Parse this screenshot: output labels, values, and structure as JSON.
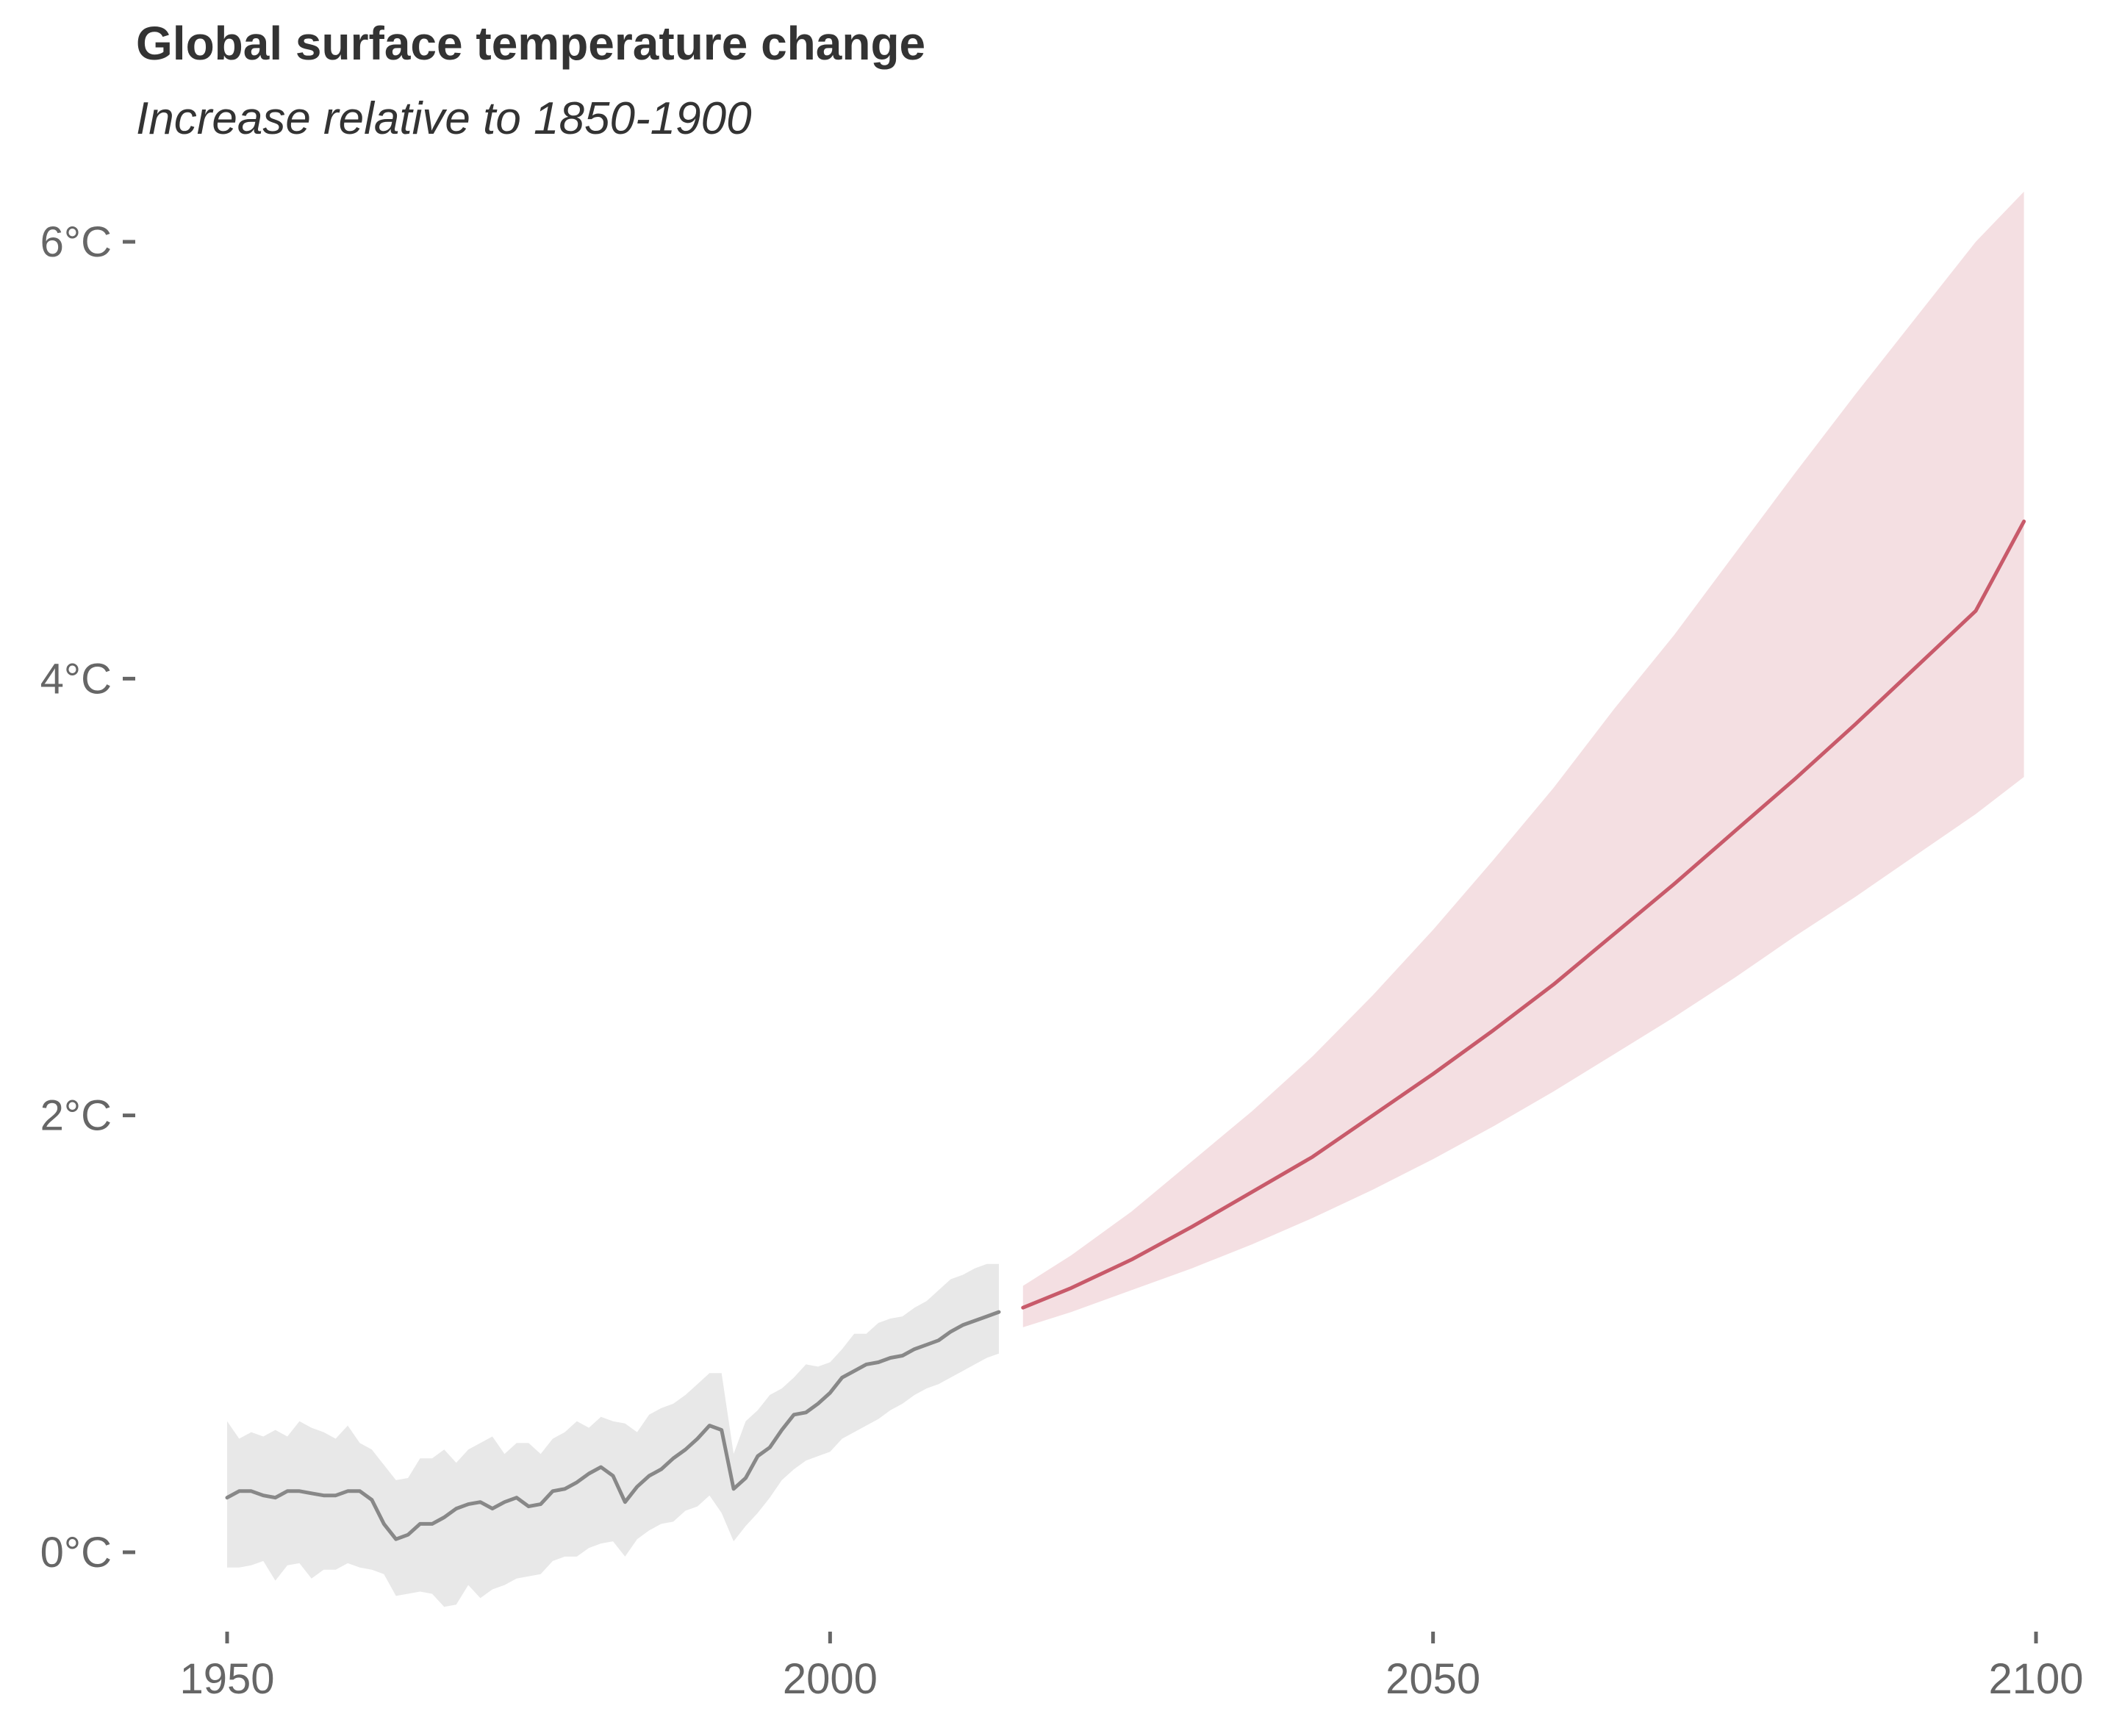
{
  "chart_data": {
    "type": "line",
    "title": "Global surface temperature change",
    "subtitle": "Increase relative to 1850-1900",
    "xlabel": "",
    "ylabel": "",
    "xlim": [
      1945,
      2103
    ],
    "ylim": [
      -0.6,
      6.6
    ],
    "x_ticks": [
      1950,
      2000,
      2050,
      2100
    ],
    "x_tick_labels": [
      "1950",
      "2000",
      "2050",
      "2100"
    ],
    "y_ticks": [
      0,
      2,
      4,
      6
    ],
    "y_tick_labels": [
      "0°C",
      "2°C",
      "4°C",
      "6°C"
    ],
    "grid": false,
    "legend": "none",
    "colors": {
      "historical_line": "#888888",
      "historical_band": "#e8e8e8",
      "projection_line": "#c85a6a",
      "projection_band": "#f4dfe2",
      "text": "#333333",
      "axis_text": "#666666"
    },
    "series": [
      {
        "x": [
          1950,
          1951,
          1952,
          1953,
          1954,
          1955,
          1956,
          1957,
          1958,
          1959,
          1960,
          1961,
          1962,
          1963,
          1964,
          1965,
          1966,
          1967,
          1968,
          1969,
          1970,
          1971,
          1972,
          1973,
          1974,
          1975,
          1976,
          1977,
          1978,
          1979,
          1980,
          1981,
          1982,
          1983,
          1984,
          1985,
          1986,
          1987,
          1988,
          1989,
          1990,
          1991,
          1992,
          1993,
          1994,
          1995,
          1996,
          1997,
          1998,
          1999,
          2000,
          2001,
          2002,
          2003,
          2004,
          2005,
          2006,
          2007,
          2008,
          2009,
          2010,
          2011,
          2012,
          2013,
          2014
        ],
        "values": [
          0.25,
          0.28,
          0.28,
          0.26,
          0.25,
          0.28,
          0.28,
          0.27,
          0.26,
          0.26,
          0.28,
          0.28,
          0.24,
          0.13,
          0.06,
          0.08,
          0.13,
          0.13,
          0.16,
          0.2,
          0.22,
          0.23,
          0.2,
          0.23,
          0.25,
          0.21,
          0.22,
          0.28,
          0.29,
          0.32,
          0.36,
          0.39,
          0.35,
          0.23,
          0.3,
          0.35,
          0.38,
          0.43,
          0.47,
          0.52,
          0.58,
          0.56,
          0.29,
          0.34,
          0.44,
          0.48,
          0.56,
          0.63,
          0.64,
          0.68,
          0.73,
          0.8,
          0.83,
          0.86,
          0.87,
          0.89,
          0.9,
          0.93,
          0.95,
          0.97,
          1.01,
          1.04,
          1.06,
          1.08,
          1.1
        ],
        "lower": [
          -0.07,
          -0.07,
          -0.06,
          -0.04,
          -0.13,
          -0.06,
          -0.05,
          -0.12,
          -0.08,
          -0.08,
          -0.05,
          -0.07,
          -0.08,
          -0.1,
          -0.2,
          -0.19,
          -0.18,
          -0.19,
          -0.25,
          -0.24,
          -0.15,
          -0.21,
          -0.17,
          -0.15,
          -0.12,
          -0.11,
          -0.1,
          -0.04,
          -0.02,
          -0.02,
          0.02,
          0.04,
          0.05,
          -0.02,
          0.06,
          0.1,
          0.13,
          0.14,
          0.19,
          0.21,
          0.26,
          0.18,
          0.05,
          0.12,
          0.18,
          0.25,
          0.33,
          0.38,
          0.42,
          0.44,
          0.46,
          0.52,
          0.55,
          0.58,
          0.61,
          0.65,
          0.68,
          0.72,
          0.75,
          0.77,
          0.8,
          0.83,
          0.86,
          0.89,
          0.91
        ],
        "upper": [
          0.6,
          0.52,
          0.55,
          0.53,
          0.56,
          0.53,
          0.6,
          0.57,
          0.55,
          0.52,
          0.58,
          0.5,
          0.47,
          0.4,
          0.33,
          0.34,
          0.43,
          0.43,
          0.47,
          0.41,
          0.47,
          0.5,
          0.53,
          0.45,
          0.5,
          0.5,
          0.45,
          0.52,
          0.55,
          0.6,
          0.57,
          0.62,
          0.6,
          0.59,
          0.55,
          0.63,
          0.66,
          0.68,
          0.72,
          0.77,
          0.82,
          0.82,
          0.45,
          0.6,
          0.65,
          0.72,
          0.75,
          0.8,
          0.86,
          0.85,
          0.87,
          0.93,
          1.0,
          1.0,
          1.05,
          1.07,
          1.08,
          1.12,
          1.15,
          1.2,
          1.25,
          1.27,
          1.3,
          1.32,
          1.32
        ]
      },
      {
        "x": [
          2016,
          2020,
          2025,
          2030,
          2035,
          2040,
          2045,
          2050,
          2055,
          2060,
          2065,
          2070,
          2075,
          2080,
          2085,
          2090,
          2095,
          2099
        ],
        "values": [
          1.12,
          1.21,
          1.34,
          1.49,
          1.65,
          1.81,
          2.0,
          2.19,
          2.39,
          2.6,
          2.83,
          3.06,
          3.3,
          3.54,
          3.79,
          4.05,
          4.31,
          4.72
        ],
        "lower": [
          1.03,
          1.1,
          1.2,
          1.3,
          1.41,
          1.53,
          1.66,
          1.8,
          1.95,
          2.11,
          2.28,
          2.45,
          2.63,
          2.82,
          3.0,
          3.19,
          3.38,
          3.55
        ],
        "upper": [
          1.22,
          1.36,
          1.56,
          1.79,
          2.02,
          2.27,
          2.55,
          2.85,
          3.17,
          3.5,
          3.86,
          4.2,
          4.57,
          4.94,
          5.3,
          5.65,
          6.0,
          6.23
        ]
      }
    ]
  }
}
